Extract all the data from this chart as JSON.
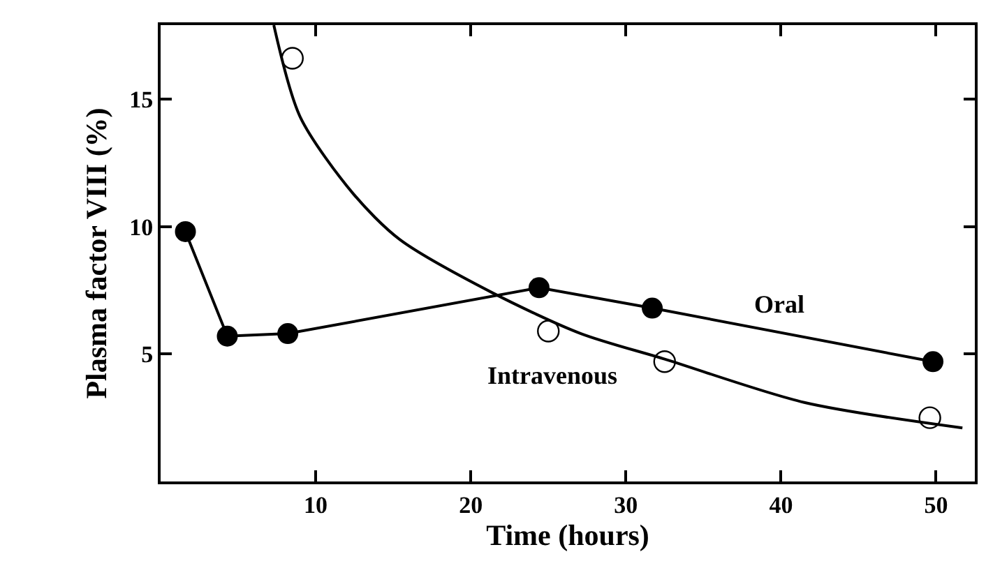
{
  "chart_data": {
    "type": "line",
    "xlabel": "Time (hours)",
    "ylabel": "Plasma factor VIII (%)",
    "xlim": [
      0,
      52.5
    ],
    "ylim": [
      0,
      17.9
    ],
    "xticks": [
      10,
      20,
      30,
      40,
      50
    ],
    "yticks": [
      5,
      10,
      15
    ],
    "marker": "circle",
    "series": [
      {
        "name": "Oral",
        "color": "#000000",
        "x": [
          1.6,
          4.3,
          8.2,
          24.4,
          31.7,
          49.8
        ],
        "values": [
          9.8,
          5.7,
          5.8,
          7.6,
          6.8,
          4.7
        ]
      },
      {
        "type": "scatter",
        "color": "#000000",
        "x": [
          8.5,
          25.0,
          32.5,
          49.6
        ],
        "values": [
          16.6,
          5.9,
          4.7,
          2.5
        ]
      },
      {
        "name": "Intravenous",
        "color": "#000000",
        "marker": "none",
        "x": [
          7.3,
          9.0,
          12.4,
          15.4,
          21.4,
          27.1,
          32.5,
          41.5,
          51.7
        ],
        "values": [
          17.9,
          14.3,
          11.3,
          9.5,
          7.4,
          5.8,
          4.8,
          3.1,
          2.1
        ]
      }
    ]
  }
}
